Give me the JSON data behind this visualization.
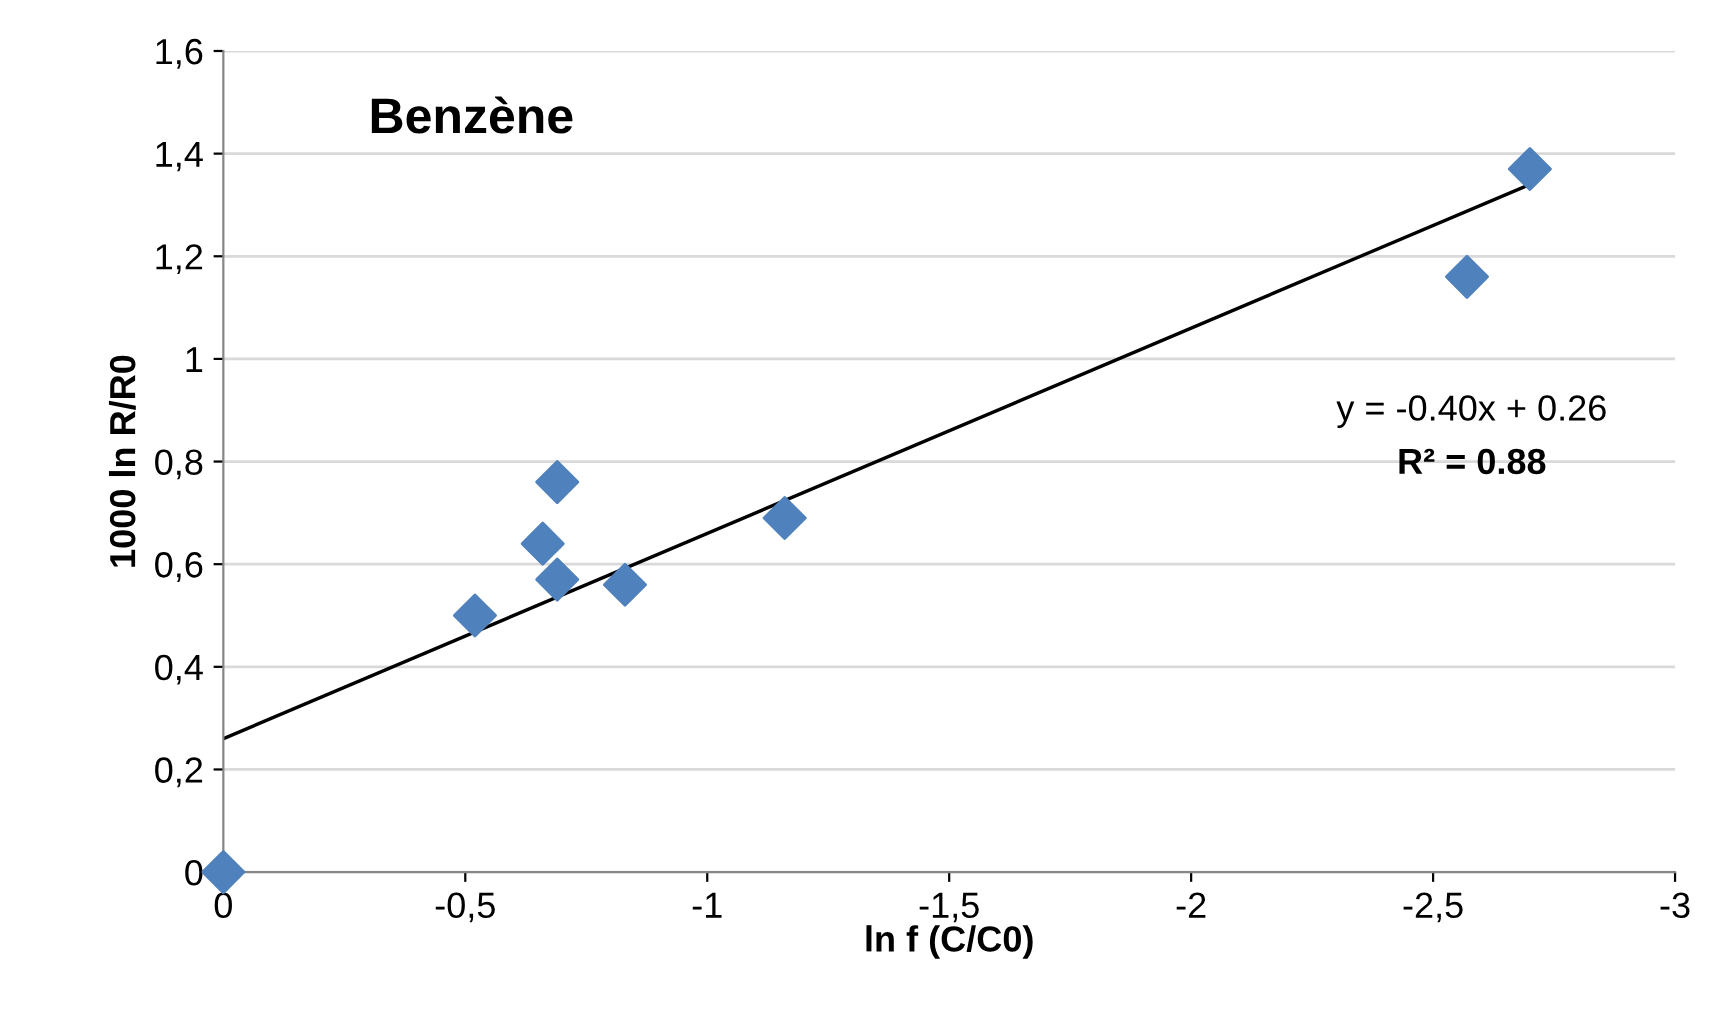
{
  "chart_data": {
    "type": "scatter",
    "title": "Benzène",
    "xlabel": "ln f (C/C0)",
    "ylabel": "1000 ln R/R0",
    "x": [
      0,
      -0.52,
      -0.66,
      -0.69,
      -0.69,
      -0.83,
      -1.16,
      -2.57,
      -2.7
    ],
    "series": [
      {
        "color": "#4f81bd",
        "marker": "diamond",
        "values": [
          0,
          0.5,
          0.64,
          0.76,
          0.57,
          0.56,
          0.69,
          1.16,
          1.37
        ]
      },
      {
        "type": "line",
        "color": "#000000",
        "marker": "none",
        "line_style": "solid",
        "x": [
          0,
          -2.7
        ],
        "values": [
          0.26,
          1.34
        ]
      }
    ],
    "annotations": [
      "y = -0.40x + 0.26",
      "R² = 0.88"
    ],
    "xlim": [
      0,
      -3
    ],
    "xticks": [
      0,
      {
        "value": -0.5,
        "label": "-0,5"
      },
      -1,
      {
        "value": -1.5,
        "label": "-1,5"
      },
      -2,
      {
        "value": -2.5,
        "label": "-2,5"
      },
      -3
    ],
    "ylim": [
      0,
      1.6
    ],
    "yticks": [
      0,
      {
        "value": 0.2,
        "label": "0,2"
      },
      {
        "value": 0.4,
        "label": "0,4"
      },
      {
        "value": 0.6,
        "label": "0,6"
      },
      {
        "value": 0.8,
        "label": "0,8"
      },
      1,
      {
        "value": 1.2,
        "label": "1,2"
      },
      {
        "value": 1.4,
        "label": "1,4"
      },
      {
        "value": 1.6,
        "label": "1,6"
      }
    ],
    "grid": "y",
    "legend": false
  }
}
